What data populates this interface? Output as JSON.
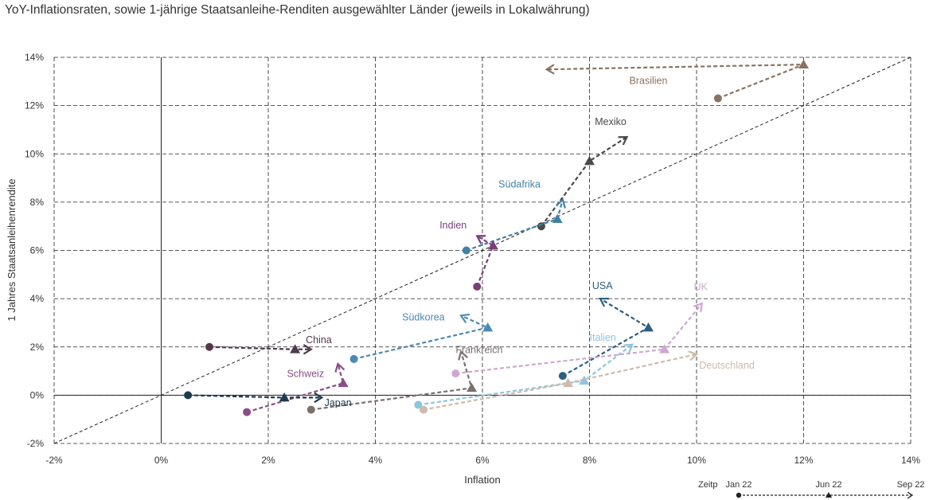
{
  "title": "YoY-Inflationsraten, sowie 1-jährige Staatsanleihe-Renditen ausgewählter Länder (jeweils in Lokalwährung)",
  "chart_data": {
    "type": "scatter",
    "xlabel": "Inflation",
    "ylabel": "1 Jahres Staatsanleihenrendite",
    "xlim": [
      -2,
      14
    ],
    "ylim": [
      -2,
      14
    ],
    "x_ticks": [
      "-2%",
      "0%",
      "2%",
      "4%",
      "6%",
      "8%",
      "10%",
      "12%",
      "14%"
    ],
    "y_ticks": [
      "-2%",
      "0%",
      "2%",
      "4%",
      "6%",
      "8%",
      "10%",
      "12%",
      "14%"
    ],
    "grid": true,
    "reference_line": "y = x",
    "point_order": [
      "Jan 22",
      "Jun 22",
      "Sep 22"
    ],
    "series": [
      {
        "name": "Brasilien",
        "color": "#8a7360",
        "points": [
          [
            10.4,
            12.3
          ],
          [
            12.0,
            13.7
          ],
          [
            7.2,
            13.5
          ]
        ]
      },
      {
        "name": "Mexiko",
        "color": "#4a4a4a",
        "points": [
          [
            7.1,
            7.0
          ],
          [
            8.0,
            9.7
          ],
          [
            8.7,
            10.7
          ]
        ]
      },
      {
        "name": "Südafrika",
        "color": "#3f82a7",
        "points": [
          [
            5.7,
            6.0
          ],
          [
            7.4,
            7.3
          ],
          [
            7.5,
            8.1
          ]
        ]
      },
      {
        "name": "Indien",
        "color": "#7a3f78",
        "points": [
          [
            5.9,
            4.5
          ],
          [
            6.2,
            6.2
          ],
          [
            5.9,
            6.6
          ]
        ]
      },
      {
        "name": "USA",
        "color": "#2c5e7f",
        "points": [
          [
            7.5,
            0.8
          ],
          [
            9.1,
            2.8
          ],
          [
            8.2,
            4.0
          ]
        ]
      },
      {
        "name": "UK",
        "color": "#cfa7d0",
        "points": [
          [
            5.5,
            0.9
          ],
          [
            9.4,
            1.9
          ],
          [
            10.1,
            3.8
          ]
        ]
      },
      {
        "name": "Südkorea",
        "color": "#4a8ab2",
        "points": [
          [
            3.6,
            1.5
          ],
          [
            6.1,
            2.8
          ],
          [
            5.6,
            3.3
          ]
        ]
      },
      {
        "name": "China",
        "color": "#52384d",
        "points": [
          [
            0.9,
            2.0
          ],
          [
            2.5,
            1.9
          ],
          [
            2.8,
            1.9
          ]
        ]
      },
      {
        "name": "Frankreich",
        "color": "#7a7070",
        "points": [
          [
            2.8,
            -0.6
          ],
          [
            5.8,
            0.3
          ],
          [
            5.6,
            1.8
          ]
        ]
      },
      {
        "name": "Italien",
        "color": "#8ec5e0",
        "points": [
          [
            4.8,
            -0.4
          ],
          [
            7.9,
            0.6
          ],
          [
            8.8,
            2.1
          ]
        ]
      },
      {
        "name": "Deutschland",
        "color": "#cdbbab",
        "points": [
          [
            4.9,
            -0.6
          ],
          [
            7.6,
            0.5
          ],
          [
            10.0,
            1.7
          ]
        ]
      },
      {
        "name": "Schweiz",
        "color": "#8a4f85",
        "points": [
          [
            1.6,
            -0.7
          ],
          [
            3.4,
            0.5
          ],
          [
            3.3,
            1.3
          ]
        ]
      },
      {
        "name": "Japan",
        "color": "#1d3b4f",
        "points": [
          [
            0.5,
            0.0
          ],
          [
            2.3,
            -0.1
          ],
          [
            3.0,
            -0.1
          ]
        ]
      }
    ]
  },
  "legend": {
    "label": "Zeitp",
    "markers": [
      "Jan 22",
      "Jun 22",
      "Sep 22"
    ]
  }
}
